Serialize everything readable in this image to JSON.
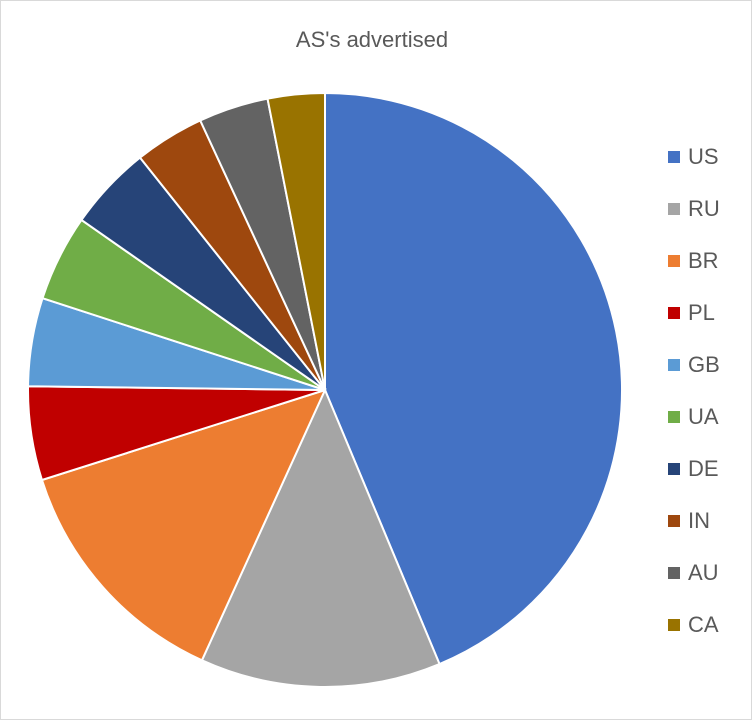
{
  "chart_data": {
    "type": "pie",
    "title": "AS's advertised",
    "categories": [
      "US",
      "RU",
      "BR",
      "PL",
      "GB",
      "UA",
      "DE",
      "IN",
      "AU",
      "CA"
    ],
    "values": [
      43.7,
      13.1,
      13.3,
      5.1,
      4.8,
      4.7,
      4.6,
      3.8,
      3.8,
      3.1
    ],
    "colors": [
      "#4472c4",
      "#a5a5a5",
      "#ed7d31",
      "#c00000",
      "#5b9bd5",
      "#70ad47",
      "#264478",
      "#9e480e",
      "#636363",
      "#997300"
    ],
    "legend": "right"
  }
}
